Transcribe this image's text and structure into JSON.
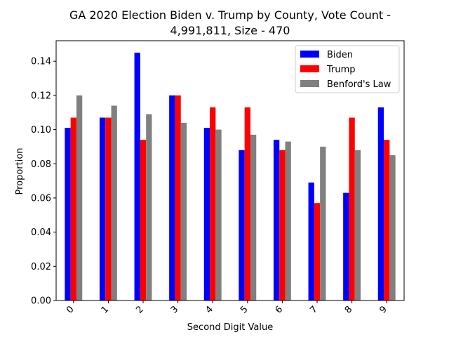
{
  "chart_data": {
    "type": "bar",
    "title_line1": "GA 2020 Election Biden v. Trump by County, Vote Count -",
    "title_line2": "4,991,811, Size - 470",
    "xlabel": "Second Digit Value",
    "ylabel": "Proportion",
    "ylim": [
      0,
      0.152
    ],
    "yticks": [
      0.0,
      0.02,
      0.04,
      0.06,
      0.08,
      0.1,
      0.12,
      0.14
    ],
    "ytick_labels": [
      "0.00",
      "0.02",
      "0.04",
      "0.06",
      "0.08",
      "0.10",
      "0.12",
      "0.14"
    ],
    "categories": [
      "0",
      "1",
      "2",
      "3",
      "4",
      "5",
      "6",
      "7",
      "8",
      "9"
    ],
    "legend_position": "top-right",
    "grid": false,
    "series": [
      {
        "name": "Biden",
        "color": "#0000ff",
        "values": [
          0.101,
          0.107,
          0.145,
          0.12,
          0.101,
          0.088,
          0.094,
          0.069,
          0.063,
          0.113
        ]
      },
      {
        "name": "Trump",
        "color": "#ff0000",
        "values": [
          0.107,
          0.107,
          0.094,
          0.12,
          0.113,
          0.113,
          0.088,
          0.057,
          0.107,
          0.094
        ]
      },
      {
        "name": "Benford's Law",
        "color": "#808080",
        "values": [
          0.12,
          0.114,
          0.109,
          0.104,
          0.1,
          0.097,
          0.093,
          0.09,
          0.088,
          0.085
        ]
      }
    ]
  }
}
